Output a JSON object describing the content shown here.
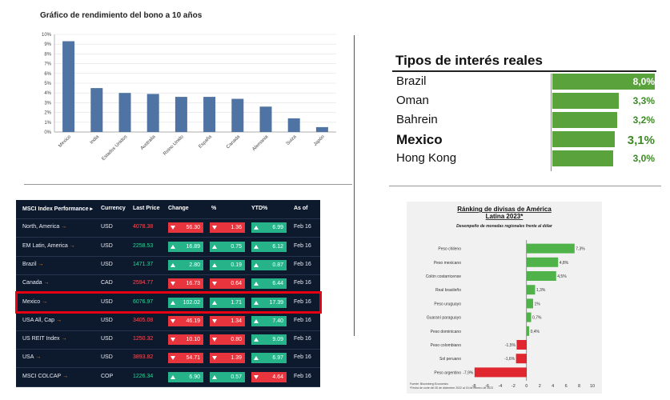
{
  "bond_chart": {
    "title": "Gráfico de rendimiento del bono a 10 años",
    "chart_data": {
      "type": "bar",
      "categories": [
        "Mexico",
        "India",
        "Estados Unidos",
        "Australia",
        "Reino Unido",
        "España",
        "Canada",
        "Alemania",
        "Suiza",
        "Japón"
      ],
      "values": [
        9.3,
        4.5,
        4.0,
        3.9,
        3.6,
        3.6,
        3.4,
        2.6,
        1.4,
        0.5
      ],
      "ylim": [
        0,
        10
      ],
      "yticks": [
        "0%",
        "1%",
        "2%",
        "3%",
        "4%",
        "5%",
        "6%",
        "7%",
        "8%",
        "9%",
        "10%"
      ],
      "bar_color": "#4f74a3",
      "grid": true
    }
  },
  "rates": {
    "title": "Tipos de interés reales",
    "bar_color": "#5aa33c",
    "chart_data": {
      "type": "bar",
      "categories": [
        "Brazil",
        "Oman",
        "Bahrein",
        "Mexico",
        "Hong Kong"
      ],
      "values": [
        8.0,
        3.3,
        3.2,
        3.1,
        3.0
      ],
      "labels": [
        "8,0%",
        "3,3%",
        "3,2%",
        "3,1%",
        "3,0%"
      ],
      "emphasis": "Mexico"
    }
  },
  "msci": {
    "headers": [
      "MSCI Index Performance ▸",
      "Currency",
      "Last Price",
      "Change",
      "%",
      "YTD%",
      "As of"
    ],
    "rows": [
      {
        "name": "North, America",
        "currency": "USD",
        "price": "4078.38",
        "price_dir": "down",
        "change": "56.30",
        "change_dir": "down",
        "pct": "1.36",
        "pct_dir": "down",
        "ytd": "6.99",
        "ytd_dir": "up",
        "asof": "Feb 16"
      },
      {
        "name": "EM Latin, America",
        "currency": "USD",
        "price": "2258.53",
        "price_dir": "up",
        "change": "16.89",
        "change_dir": "up",
        "pct": "0.75",
        "pct_dir": "up",
        "ytd": "6.12",
        "ytd_dir": "up",
        "asof": "Feb 16"
      },
      {
        "name": "Brazil",
        "currency": "USD",
        "price": "1471.37",
        "price_dir": "up",
        "change": "2.80",
        "change_dir": "up",
        "pct": "0.19",
        "pct_dir": "up",
        "ytd": "0.87",
        "ytd_dir": "up",
        "asof": "Feb 16"
      },
      {
        "name": "Canada",
        "currency": "CAD",
        "price": "2594.77",
        "price_dir": "down",
        "change": "16.73",
        "change_dir": "down",
        "pct": "0.64",
        "pct_dir": "down",
        "ytd": "6.44",
        "ytd_dir": "up",
        "asof": "Feb 16"
      },
      {
        "name": "Mexico",
        "currency": "USD",
        "price": "6076.97",
        "price_dir": "up",
        "change": "102.02",
        "change_dir": "up",
        "pct": "1.71",
        "pct_dir": "up",
        "ytd": "17.39",
        "ytd_dir": "up",
        "asof": "Feb 16"
      },
      {
        "name": "USA All, Cap",
        "currency": "USD",
        "price": "3405.08",
        "price_dir": "down",
        "change": "46.19",
        "change_dir": "down",
        "pct": "1.34",
        "pct_dir": "down",
        "ytd": "7.40",
        "ytd_dir": "up",
        "asof": "Feb 16"
      },
      {
        "name": "US REIT Index",
        "currency": "USD",
        "price": "1250.32",
        "price_dir": "down",
        "change": "10.10",
        "change_dir": "down",
        "pct": "0.80",
        "pct_dir": "down",
        "ytd": "9.09",
        "ytd_dir": "up",
        "asof": "Feb 16"
      },
      {
        "name": "USA",
        "currency": "USD",
        "price": "3893.82",
        "price_dir": "down",
        "change": "54.71",
        "change_dir": "down",
        "pct": "1.39",
        "pct_dir": "down",
        "ytd": "6.97",
        "ytd_dir": "up",
        "asof": "Feb 16"
      },
      {
        "name": "MSCI COLCAP",
        "currency": "COP",
        "price": "1226.34",
        "price_dir": "up",
        "change": "6.90",
        "change_dir": "up",
        "pct": "0.57",
        "pct_dir": "up",
        "ytd": "4.64",
        "ytd_dir": "down",
        "asof": "Feb 16"
      }
    ],
    "arrow_glyph": "→",
    "highlight_row": "Mexico",
    "colors": {
      "bg": "#0d1a2e",
      "up": "#27b38a",
      "down": "#e8353d",
      "highlight": "#e60012"
    }
  },
  "currency": {
    "title_line1": "Ránking de divisas de América",
    "title_line2": "Latina 2023*",
    "subtitle": "Desempeño de monedas regionales frente al dólar",
    "footnote1": "Fuente: Bloomberg Economics",
    "footnote2": "*Fecha de corte del 30 de diciembre 2022 al 15 de febrero de 2023",
    "chart_data": {
      "type": "bar",
      "orientation": "horizontal",
      "categories": [
        "Peso chileno",
        "Peso mexicano",
        "Colón costarricense",
        "Real brasileño",
        "Peso uruguayo",
        "Guaraní paraguayo",
        "Peso dominicano",
        "Peso colombiano",
        "Sol peruano",
        "Peso argentino"
      ],
      "values": [
        7.3,
        4.8,
        4.5,
        1.3,
        1.0,
        0.7,
        0.4,
        -1.5,
        -1.6,
        -7.9
      ],
      "labels": [
        "7,3%",
        "4,8%",
        "4,5%",
        "1,3%",
        "1%",
        "0,7%",
        "0,4%",
        "-1,5%",
        "-1,6%",
        "-7,9%"
      ],
      "xlim": [
        -8,
        10
      ],
      "xticks": [
        "-8",
        "-6",
        "-4",
        "-2",
        "0",
        "2",
        "4",
        "6",
        "8",
        "10"
      ],
      "pos_color": "#4fb34a",
      "neg_color": "#e0262e"
    }
  }
}
